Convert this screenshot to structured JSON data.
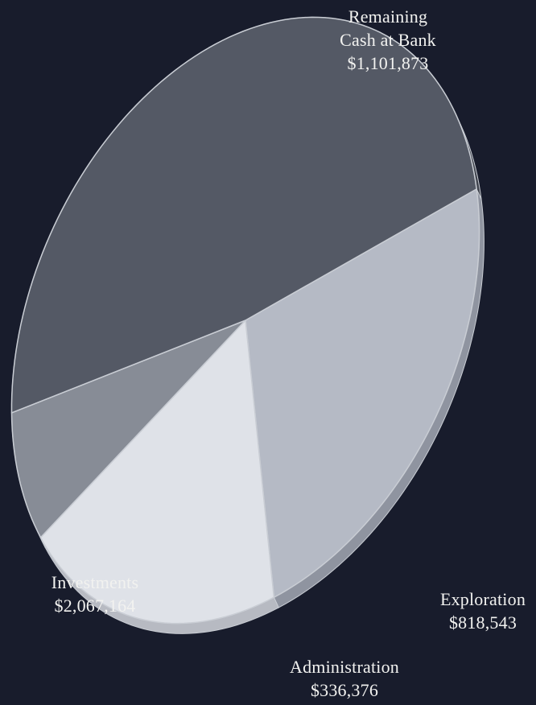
{
  "colors": {
    "background": "#181c2c",
    "label_text": "#f2f2f0",
    "slice_edge": "#c9cdd4"
  },
  "chart_data": {
    "type": "pie",
    "style": "3d-tilted",
    "title": "",
    "slices": [
      {
        "name": "Remaining Cash at Bank",
        "value": 1101873,
        "label_lines": [
          "Remaining",
          "Cash at Bank",
          "$1,101,873"
        ],
        "color": "#b5bac5",
        "side_color": "#8f94a0"
      },
      {
        "name": "Exploration",
        "value": 818543,
        "label_lines": [
          "Exploration",
          "$818,543"
        ],
        "color": "#dfe2e8",
        "side_color": "#b7bac2"
      },
      {
        "name": "Administration",
        "value": 336376,
        "label_lines": [
          "Administration",
          "$336,376"
        ],
        "color": "#878c96",
        "side_color": "#6b7079"
      },
      {
        "name": "Investments",
        "value": 2067164,
        "label_lines": [
          "Investments",
          "$2,067,164"
        ],
        "color": "#545965",
        "side_color": "#3f434d"
      }
    ]
  }
}
